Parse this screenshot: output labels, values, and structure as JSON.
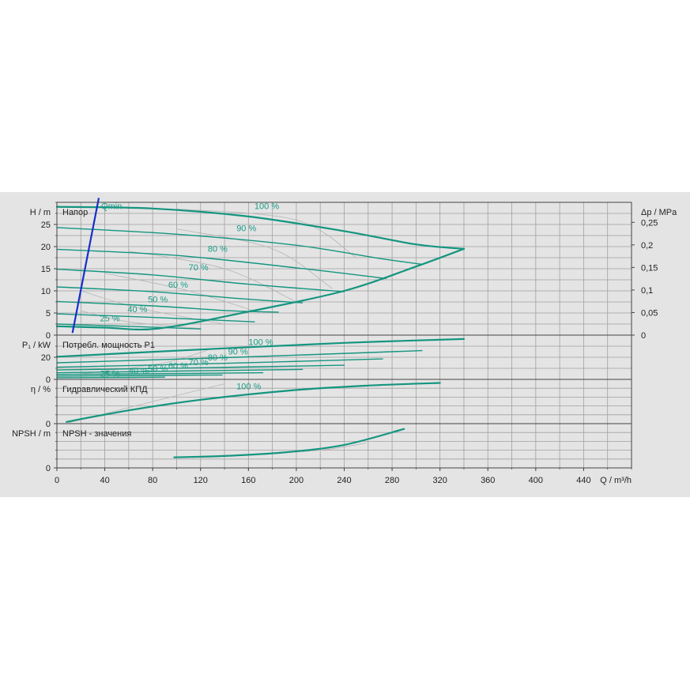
{
  "chart_data": {
    "type": "line",
    "x_axis": {
      "label": "Q / m³/h",
      "range": [
        0,
        480
      ],
      "ticks": [
        0,
        40,
        80,
        120,
        160,
        200,
        240,
        280,
        320,
        360,
        400,
        440
      ],
      "tick_labels": [
        "0",
        "40",
        "80",
        "120",
        "160",
        "200",
        "240",
        "280",
        "320",
        "360",
        "400",
        "440"
      ]
    },
    "colors": {
      "curve": "#14957f",
      "qmin": "#1530c8",
      "helper": "#b5b5b5",
      "background": "#e4e4e4",
      "grid": "#a0a0a0"
    },
    "panels": [
      {
        "id": "head",
        "title": "Напор",
        "ylabel": "H / m",
        "ylim": [
          0,
          30
        ],
        "yticks": [
          0,
          5,
          10,
          15,
          20,
          25
        ],
        "ytick_labels": [
          "0",
          "5",
          "10",
          "15",
          "20",
          "25"
        ],
        "y2label": "Δp / MPa",
        "y2ticks": [
          0,
          0.05,
          0.1,
          0.15,
          0.2,
          0.25
        ],
        "y2tick_labels": [
          "0",
          "0,05",
          "0,1",
          "0,15",
          "0,2",
          "0,25"
        ],
        "series": [
          {
            "label": "100 %",
            "label_at": [
              165,
              28.5
            ],
            "x": [
              0,
              80,
              160,
              240,
              300,
              340
            ],
            "y": [
              29,
              28.6,
              26.8,
              23.5,
              20.5,
              19.5
            ]
          },
          {
            "label": "90 %",
            "label_at": [
              150,
              23.5
            ],
            "x": [
              0,
              100,
              200,
              270,
              305
            ],
            "y": [
              24.3,
              22.8,
              20.3,
              17.3,
              16
            ]
          },
          {
            "label": "80 %",
            "label_at": [
              126,
              18.8
            ],
            "x": [
              0,
              100,
              200,
              275
            ],
            "y": [
              19.4,
              18,
              15.2,
              12.8
            ]
          },
          {
            "label": "70 %",
            "label_at": [
              110,
              14.6
            ],
            "x": [
              0,
              80,
              160,
              240
            ],
            "y": [
              14.9,
              13.6,
              11.5,
              9.8
            ]
          },
          {
            "label": "60 %",
            "label_at": [
              93,
              10.7
            ],
            "x": [
              0,
              80,
              160,
              205
            ],
            "y": [
              10.9,
              9.8,
              8.1,
              7.3
            ]
          },
          {
            "label": "50 %",
            "label_at": [
              76,
              7.4
            ],
            "x": [
              0,
              80,
              145,
              185
            ],
            "y": [
              7.6,
              6.6,
              5.5,
              5.2
            ]
          },
          {
            "label": "40 %",
            "label_at": [
              59,
              5.2
            ],
            "x": [
              0,
              80,
              165
            ],
            "y": [
              4.8,
              4,
              3
            ]
          },
          {
            "label": "25 %",
            "label_at": [
              36,
              3.1
            ],
            "x": [
              0,
              80,
              120
            ],
            "y": [
              2.5,
              1.8,
              1.4
            ]
          },
          {
            "label": "",
            "x": [
              0,
              40,
              85,
              160,
              240,
              300,
              340
            ],
            "y": [
              2,
              1.7,
              1.5,
              5.3,
              10,
              15.5,
              19.5
            ]
          }
        ],
        "qmin": {
          "label": "Qmin",
          "label_at": [
            37,
            28.5
          ],
          "x": [
            13,
            35
          ],
          "y": [
            0.5,
            31
          ]
        },
        "helper_curves": [
          {
            "x": [
              100,
              200,
              250
            ],
            "y": [
              28.5,
              26,
              17.5
            ]
          },
          {
            "x": [
              100,
              180,
              230
            ],
            "y": [
              24,
              19.5,
              10.5
            ]
          },
          {
            "x": [
              60,
              140,
              200
            ],
            "y": [
              19,
              15,
              7.5
            ]
          },
          {
            "x": [
              40,
              110,
              170
            ],
            "y": [
              14,
              10,
              5
            ]
          },
          {
            "x": [
              20,
              70,
              140
            ],
            "y": [
              10,
              6,
              2.5
            ]
          },
          {
            "x": [
              20,
              60,
              120
            ],
            "y": [
              5.5,
              3,
              1.5
            ]
          }
        ]
      },
      {
        "id": "power",
        "title": "Потребл. мощность P1",
        "ylabel": "P₁ / kW",
        "ylim": [
          0,
          40
        ],
        "yticks": [
          0,
          20
        ],
        "ytick_labels": [
          "0",
          "20"
        ],
        "series": [
          {
            "label": "100 %",
            "label_at": [
              160,
              31
            ],
            "x": [
              0,
              120,
              240,
              340
            ],
            "y": [
              20.5,
              27,
              33,
              36.5
            ]
          },
          {
            "label": "90 %",
            "label_at": [
              143,
              22.5
            ],
            "x": [
              0,
              150,
              305
            ],
            "y": [
              15,
              20,
              26
            ]
          },
          {
            "label": "80 %",
            "label_at": [
              126,
              17
            ],
            "x": [
              0,
              140,
              272
            ],
            "y": [
              11,
              14.5,
              18.5
            ]
          },
          {
            "label": "70 %",
            "label_at": [
              110,
              13
            ],
            "x": [
              0,
              120,
              240
            ],
            "y": [
              8.5,
              10.5,
              12.8
            ]
          },
          {
            "label": "60 %",
            "label_at": [
              93,
              9.5
            ],
            "x": [
              0,
              100,
              205
            ],
            "y": [
              6,
              7.5,
              9
            ]
          },
          {
            "label": "50 %",
            "label_at": [
              76,
              7
            ],
            "x": [
              0,
              90,
              172
            ],
            "y": [
              4.5,
              5.2,
              6
            ]
          },
          {
            "label": "40 %",
            "label_at": [
              60,
              5
            ],
            "x": [
              0,
              85,
              138
            ],
            "y": [
              3,
              3.6,
              4
            ]
          },
          {
            "label": "25 %",
            "label_at": [
              36,
              2.5
            ],
            "x": [
              0,
              60,
              90
            ],
            "y": [
              1.5,
              1.8,
              2
            ]
          }
        ],
        "helper_curves": [
          {
            "x": [
              20,
              90,
              130
            ],
            "y": [
              5,
              15,
              28
            ]
          }
        ]
      },
      {
        "id": "efficiency",
        "title": "Гидравлический КПД",
        "ylabel": "η / %",
        "ylim": [
          0,
          100
        ],
        "yticks": [
          0
        ],
        "ytick_labels": [
          "0"
        ],
        "series": [
          {
            "label": "100 %",
            "label_at": [
              150,
              78
            ],
            "x": [
              8,
              60,
              120,
              200,
              260,
              320
            ],
            "y": [
              4,
              30,
              54,
              76,
              86,
              92
            ]
          }
        ],
        "helper_curves": [
          {
            "x": [
              10,
              80,
              140
            ],
            "y": [
              2,
              50,
              90
            ]
          }
        ]
      },
      {
        "id": "npsh",
        "title": "NPSH - значения",
        "ylabel": "NPSH / m",
        "ylim": [
          0,
          100
        ],
        "yticks": [
          0
        ],
        "ytick_labels": [
          "0"
        ],
        "series": [
          {
            "label": "",
            "x": [
              98,
              140,
              190,
              240,
              290
            ],
            "y": [
              24,
              27,
              35,
              52,
              88
            ]
          }
        ],
        "helper_curves": [
          {
            "x": [
              160,
              220,
              258
            ],
            "y": [
              30,
              40,
              56
            ]
          }
        ]
      }
    ]
  }
}
